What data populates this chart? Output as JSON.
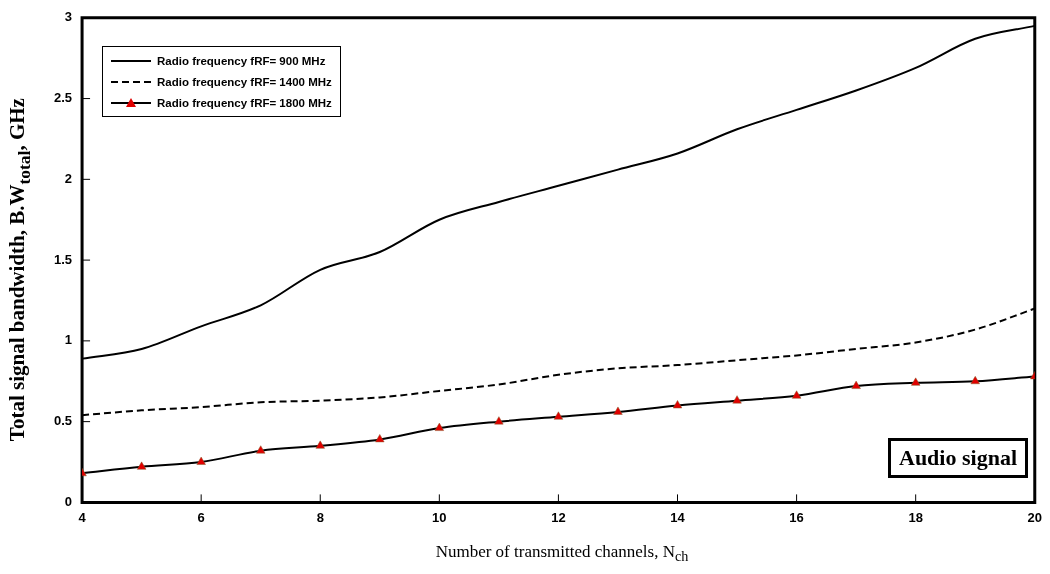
{
  "chart_data": {
    "type": "line",
    "xlabel": "Number of transmitted channels, N$_{ch}$",
    "ylabel": "Total signal bandwidth, B.W$_{total}$, GHz",
    "x": [
      4,
      5,
      6,
      7,
      8,
      9,
      10,
      11,
      12,
      13,
      14,
      15,
      16,
      17,
      18,
      19,
      20
    ],
    "series": [
      {
        "name": "Radio frequency fRF= 900 MHz",
        "color": "#000000",
        "marker": "none",
        "line_style": "solid",
        "values": [
          0.89,
          0.95,
          1.09,
          1.22,
          1.44,
          1.55,
          1.75,
          1.86,
          1.96,
          2.06,
          2.16,
          2.31,
          2.43,
          2.55,
          2.69,
          2.87,
          2.95
        ]
      },
      {
        "name": "Radio frequency fRF= 1400 MHz",
        "color": "#000000",
        "marker": "none",
        "line_style": "dashed",
        "values": [
          0.54,
          0.57,
          0.59,
          0.62,
          0.63,
          0.65,
          0.69,
          0.73,
          0.79,
          0.83,
          0.85,
          0.88,
          0.91,
          0.95,
          0.99,
          1.07,
          1.2
        ]
      },
      {
        "name": "Radio frequency fRF= 1800 MHz",
        "color": "#000000",
        "colors": [
          "#e00000",
          "#e00000",
          "#e00000",
          "#e00000",
          "#e00000",
          "#e00000",
          "#e00000",
          "#e00000",
          "#e00000",
          "#e00000",
          "#e00000",
          "#e00000",
          "#e00000",
          "#e00000",
          "#e00000",
          "#e00000",
          "#e00000"
        ],
        "marker": "triangle",
        "line_style": "solid",
        "values": [
          0.18,
          0.22,
          0.25,
          0.32,
          0.35,
          0.39,
          0.46,
          0.5,
          0.53,
          0.56,
          0.6,
          0.63,
          0.66,
          0.72,
          0.74,
          0.75,
          0.78
        ]
      }
    ],
    "xlim": [
      4,
      20
    ],
    "xticks": [
      4,
      6,
      8,
      10,
      12,
      14,
      16,
      18,
      20
    ],
    "ylim": [
      0,
      3
    ],
    "yticks": [
      0,
      0.5,
      1,
      1.5,
      2,
      2.5,
      3
    ],
    "grid": false,
    "legend": "top left",
    "annotations": [
      "Audio signal"
    ]
  }
}
